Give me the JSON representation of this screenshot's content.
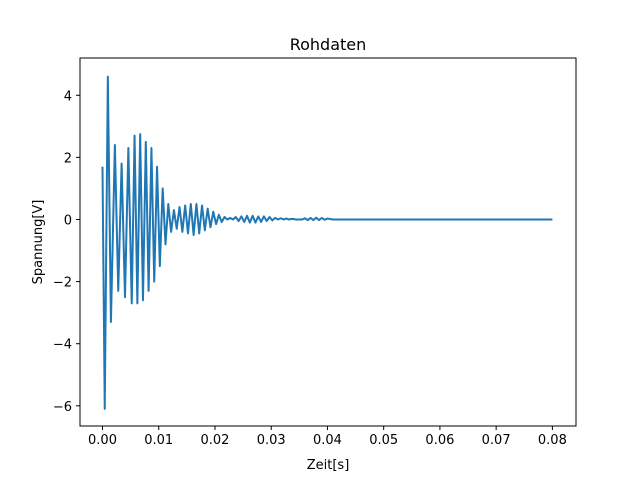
{
  "chart_data": {
    "type": "line",
    "title": "Rohdaten",
    "xlabel": "Zeit[s]",
    "ylabel": "Spannung[V]",
    "xlim": [
      -0.004,
      0.0842
    ],
    "ylim": [
      -6.65,
      5.2
    ],
    "xticks": [
      {
        "value": 0.0,
        "label": "0.00"
      },
      {
        "value": 0.01,
        "label": "0.01"
      },
      {
        "value": 0.02,
        "label": "0.02"
      },
      {
        "value": 0.03,
        "label": "0.03"
      },
      {
        "value": 0.04,
        "label": "0.04"
      },
      {
        "value": 0.05,
        "label": "0.05"
      },
      {
        "value": 0.06,
        "label": "0.06"
      },
      {
        "value": 0.07,
        "label": "0.07"
      },
      {
        "value": 0.08,
        "label": "0.08"
      }
    ],
    "yticks": [
      {
        "value": -6,
        "label": "−6"
      },
      {
        "value": -4,
        "label": "−4"
      },
      {
        "value": -2,
        "label": "−2"
      },
      {
        "value": 0,
        "label": "0"
      },
      {
        "value": 2,
        "label": "2"
      },
      {
        "value": 4,
        "label": "4"
      }
    ],
    "grid": false,
    "line_color": "#1f77b4",
    "series": [
      {
        "x": [
          0.0,
          0.0004,
          0.00095,
          0.0015,
          0.0022,
          0.0028,
          0.0034,
          0.004,
          0.0046,
          0.0052,
          0.0057,
          0.0062,
          0.0067,
          0.0072,
          0.0077,
          0.0082,
          0.0087,
          0.0092,
          0.0097,
          0.0102,
          0.0107,
          0.0112,
          0.0117,
          0.0122,
          0.0127,
          0.0132,
          0.0137,
          0.0142,
          0.0147,
          0.0152,
          0.0157,
          0.0162,
          0.0167,
          0.0172,
          0.0177,
          0.0182,
          0.0187,
          0.0192,
          0.0197,
          0.0202,
          0.0207,
          0.0212,
          0.0217,
          0.0222,
          0.0227,
          0.0232,
          0.0237,
          0.0242,
          0.0247,
          0.0252,
          0.0257,
          0.0262,
          0.0267,
          0.0272,
          0.0277,
          0.0282,
          0.0287,
          0.0292,
          0.0297,
          0.0302,
          0.0307,
          0.0312,
          0.0317,
          0.0322,
          0.0327,
          0.0332,
          0.0337,
          0.0345,
          0.0355,
          0.036,
          0.0365,
          0.037,
          0.0375,
          0.038,
          0.0385,
          0.039,
          0.0395,
          0.04,
          0.041,
          0.045,
          0.05,
          0.06,
          0.07,
          0.08
        ],
        "y": [
          1.7,
          -6.1,
          4.6,
          -3.3,
          2.4,
          -2.3,
          1.8,
          -2.5,
          2.3,
          -2.7,
          2.7,
          -2.7,
          2.75,
          -2.6,
          2.5,
          -2.3,
          2.3,
          -2.0,
          1.7,
          -1.5,
          1.0,
          -0.8,
          0.5,
          -0.4,
          0.3,
          -0.3,
          0.4,
          -0.4,
          0.45,
          -0.45,
          0.5,
          -0.5,
          0.5,
          -0.45,
          0.45,
          -0.35,
          0.35,
          -0.25,
          0.25,
          -0.15,
          0.15,
          -0.08,
          0.08,
          0.0,
          0.05,
          0.0,
          0.08,
          -0.05,
          0.1,
          -0.08,
          0.12,
          -0.1,
          0.12,
          -0.1,
          0.1,
          -0.08,
          0.1,
          -0.05,
          0.08,
          -0.03,
          0.05,
          0.0,
          0.04,
          0.0,
          0.03,
          0.0,
          0.02,
          0.0,
          0.0,
          0.04,
          -0.02,
          0.05,
          -0.02,
          0.06,
          -0.02,
          0.05,
          -0.01,
          0.03,
          0.0,
          0.0,
          0.0,
          0.0,
          0.0,
          0.0
        ]
      }
    ]
  }
}
